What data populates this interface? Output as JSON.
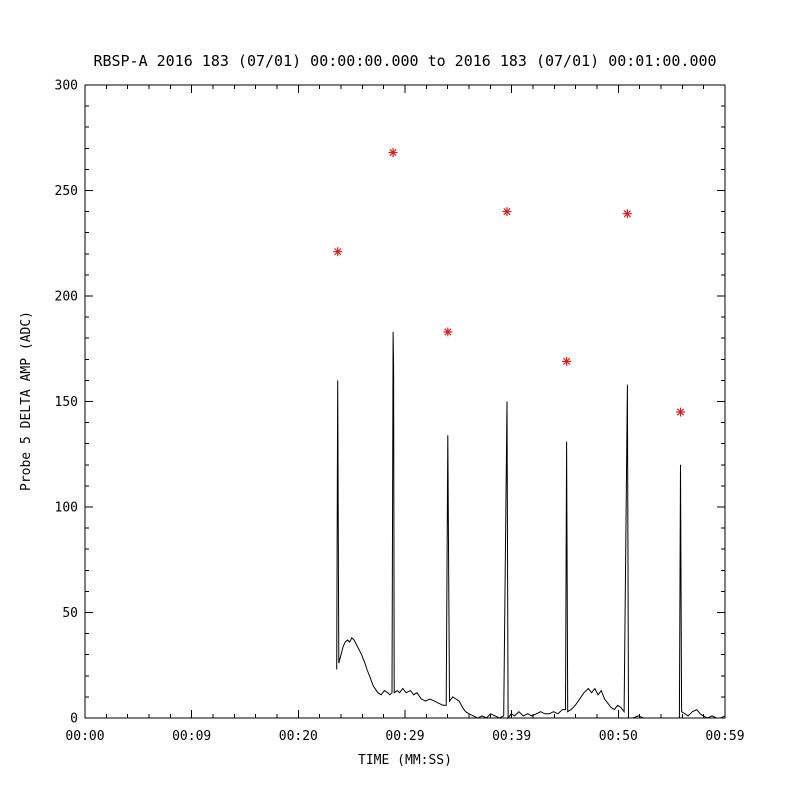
{
  "page": {
    "background": "#ffffff"
  },
  "chart_data": {
    "type": "line",
    "title": "RBSP-A 2016 183 (07/01) 00:00:00.000 to 2016 183 (07/01) 00:01:00.000",
    "xlabel": "TIME (MM:SS)",
    "ylabel": "Probe 5 DELTA AMP (ADC)",
    "xlim": [
      0,
      59
    ],
    "ylim": [
      0,
      300
    ],
    "x_tick_labels": [
      "00:00",
      "00:09",
      "00:20",
      "00:29",
      "00:39",
      "00:50",
      "00:59"
    ],
    "y_tick_values": [
      0,
      50,
      100,
      150,
      200,
      250,
      300
    ],
    "y_tick_labels": [
      "0",
      "50",
      "100",
      "150",
      "200",
      "250",
      "300"
    ],
    "grid": false,
    "legend": "none",
    "background": "#ffffff",
    "axis_color": "#000000",
    "series": [
      {
        "name": "probe-5-delta-amp",
        "color": "#000000",
        "points": [
          [
            23.2,
            23
          ],
          [
            23.3,
            160
          ],
          [
            23.4,
            26
          ],
          [
            23.6,
            30
          ],
          [
            23.8,
            34
          ],
          [
            24.0,
            36
          ],
          [
            24.2,
            37
          ],
          [
            24.4,
            36
          ],
          [
            24.6,
            38
          ],
          [
            24.8,
            37
          ],
          [
            25.0,
            35
          ],
          [
            25.2,
            33
          ],
          [
            25.5,
            30
          ],
          [
            25.8,
            26
          ],
          [
            26.0,
            23
          ],
          [
            26.3,
            19
          ],
          [
            26.6,
            15
          ],
          [
            27.0,
            12
          ],
          [
            27.3,
            11
          ],
          [
            27.6,
            13
          ],
          [
            27.9,
            12
          ],
          [
            28.1,
            11
          ],
          [
            28.3,
            12
          ],
          [
            28.4,
            183
          ],
          [
            28.45,
            166
          ],
          [
            28.5,
            12
          ],
          [
            28.8,
            13
          ],
          [
            29.0,
            12
          ],
          [
            29.3,
            14
          ],
          [
            29.6,
            12
          ],
          [
            30.0,
            13
          ],
          [
            30.3,
            11
          ],
          [
            30.6,
            12
          ],
          [
            31.0,
            9
          ],
          [
            31.4,
            8
          ],
          [
            31.8,
            9
          ],
          [
            32.2,
            8
          ],
          [
            32.6,
            7
          ],
          [
            33.0,
            6
          ],
          [
            33.3,
            6
          ],
          [
            33.45,
            134
          ],
          [
            33.6,
            8
          ],
          [
            33.9,
            10
          ],
          [
            34.2,
            9
          ],
          [
            34.5,
            8
          ],
          [
            34.8,
            5
          ],
          [
            35.1,
            3
          ],
          [
            35.4,
            2
          ],
          [
            35.8,
            1
          ],
          [
            36.2,
            0
          ],
          [
            36.6,
            1
          ],
          [
            37.0,
            0
          ],
          [
            37.4,
            2
          ],
          [
            37.8,
            1
          ],
          [
            38.2,
            0
          ],
          [
            38.6,
            1
          ],
          [
            38.9,
            150
          ],
          [
            39.0,
            0
          ],
          [
            39.3,
            2
          ],
          [
            39.6,
            1
          ],
          [
            40.0,
            3
          ],
          [
            40.4,
            1
          ],
          [
            40.8,
            2
          ],
          [
            41.2,
            1
          ],
          [
            41.6,
            2
          ],
          [
            42.0,
            3
          ],
          [
            42.4,
            2
          ],
          [
            42.8,
            2
          ],
          [
            43.2,
            3
          ],
          [
            43.6,
            2
          ],
          [
            44.0,
            4
          ],
          [
            44.3,
            4
          ],
          [
            44.4,
            131
          ],
          [
            44.5,
            3
          ],
          [
            44.8,
            4
          ],
          [
            45.2,
            6
          ],
          [
            45.6,
            9
          ],
          [
            46.0,
            12
          ],
          [
            46.4,
            14
          ],
          [
            46.7,
            12
          ],
          [
            47.0,
            14
          ],
          [
            47.3,
            11
          ],
          [
            47.6,
            13
          ],
          [
            47.9,
            9
          ],
          [
            48.2,
            7
          ],
          [
            48.5,
            5
          ],
          [
            48.8,
            4
          ],
          [
            49.1,
            6
          ],
          [
            49.4,
            5
          ],
          [
            49.7,
            3
          ],
          [
            50.0,
            158
          ],
          [
            50.1,
            0
          ],
          [
            50.5,
            0
          ],
          [
            51.0,
            1
          ],
          [
            51.5,
            0
          ],
          [
            52.0,
            0
          ],
          [
            52.5,
            0
          ],
          [
            53.0,
            0
          ],
          [
            53.5,
            0
          ],
          [
            54.0,
            0
          ],
          [
            54.5,
            0
          ],
          [
            54.8,
            0
          ],
          [
            54.9,
            120
          ],
          [
            55.0,
            3
          ],
          [
            55.3,
            2
          ],
          [
            55.6,
            1
          ],
          [
            56.0,
            3
          ],
          [
            56.4,
            4
          ],
          [
            56.7,
            2
          ],
          [
            57.0,
            1
          ],
          [
            57.4,
            0
          ],
          [
            57.8,
            1
          ],
          [
            58.2,
            0
          ],
          [
            58.6,
            0
          ],
          [
            59.0,
            1
          ]
        ]
      }
    ],
    "markers": {
      "symbol": "asterisk",
      "color": "#cc2222",
      "points": [
        [
          23.3,
          221
        ],
        [
          28.4,
          268
        ],
        [
          33.45,
          183
        ],
        [
          38.9,
          240
        ],
        [
          44.4,
          169
        ],
        [
          50.0,
          239
        ],
        [
          54.9,
          145
        ]
      ]
    }
  }
}
